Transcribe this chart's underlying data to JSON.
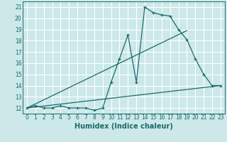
{
  "title": "",
  "xlabel": "Humidex (Indice chaleur)",
  "bg_color": "#cce8e8",
  "grid_color": "#ffffff",
  "line_color": "#1a6b6b",
  "xlim": [
    -0.5,
    23.5
  ],
  "ylim": [
    11.5,
    21.5
  ],
  "xticks": [
    0,
    1,
    2,
    3,
    4,
    5,
    6,
    7,
    8,
    9,
    10,
    11,
    12,
    13,
    14,
    15,
    16,
    17,
    18,
    19,
    20,
    21,
    22,
    23
  ],
  "yticks": [
    12,
    13,
    14,
    15,
    16,
    17,
    18,
    19,
    20,
    21
  ],
  "series1_x": [
    0,
    1,
    2,
    3,
    4,
    5,
    6,
    7,
    8,
    9,
    10,
    11,
    12,
    13,
    14,
    15,
    16,
    17,
    18,
    19,
    20,
    21,
    22,
    23
  ],
  "series1_y": [
    12.0,
    12.2,
    12.0,
    12.0,
    12.2,
    12.0,
    12.0,
    12.0,
    11.8,
    12.0,
    14.3,
    16.4,
    18.5,
    14.3,
    21.0,
    20.5,
    20.3,
    20.2,
    19.0,
    18.1,
    16.4,
    15.0,
    14.0,
    14.0
  ],
  "series2_x": [
    0,
    19
  ],
  "series2_y": [
    12.0,
    18.9
  ],
  "series3_x": [
    0,
    23
  ],
  "series3_y": [
    12.0,
    14.0
  ],
  "xlabel_fontsize": 7,
  "tick_fontsize": 5.5
}
